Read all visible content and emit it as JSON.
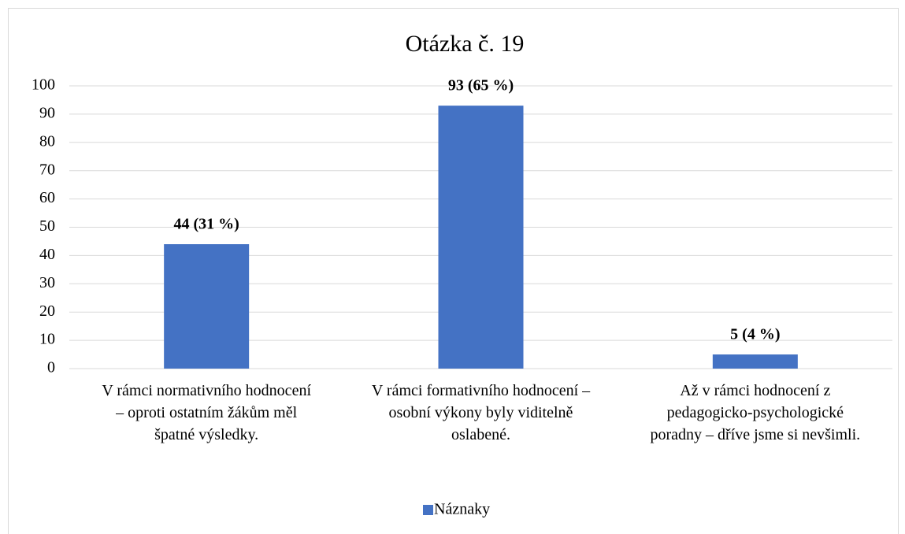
{
  "chart_data": {
    "type": "bar",
    "title": "Otázka č. 19",
    "categories": [
      "V rámci normativního hodnocení – oproti ostatním žákům měl špatné výsledky.",
      "V rámci formativního hodnocení – osobní výkony byly viditelně oslabené.",
      "Až v rámci hodnocení z pedagogicko-psychologické poradny – dříve jsme si nevšimli."
    ],
    "series": [
      {
        "name": "Náznaky",
        "color": "#4472c4",
        "values": [
          44,
          93,
          5
        ],
        "value_labels": [
          "44 (31 %)",
          "93 (65 %)",
          "5 (4 %)"
        ]
      }
    ],
    "ylim": [
      0,
      100
    ],
    "yticks": [
      0,
      10,
      20,
      30,
      40,
      50,
      60,
      70,
      80,
      90,
      100
    ],
    "grid": true,
    "legend": "bottom"
  }
}
